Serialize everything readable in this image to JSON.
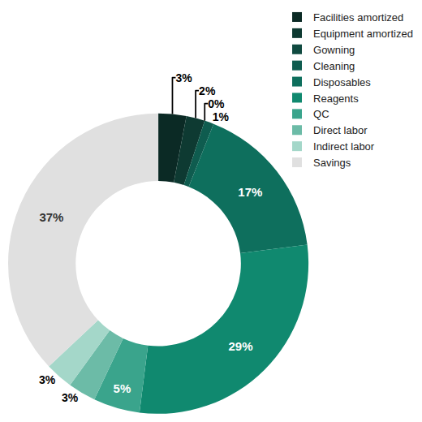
{
  "chart_data": {
    "type": "pie",
    "categories": [
      "Facilities amortized",
      "Equipment amortized",
      "Gowning",
      "Cleaning",
      "Disposables",
      "Reagents",
      "QC",
      "Direct labor",
      "Indirect labor",
      "Savings"
    ],
    "values": [
      3,
      2,
      0,
      1,
      17,
      29,
      5,
      3,
      3,
      37
    ],
    "value_labels": [
      "3%",
      "2%",
      "0%",
      "1%",
      "17%",
      "29%",
      "5%",
      "3%",
      "3%",
      "37%"
    ],
    "colors": [
      "#0b2a25",
      "#0e3a32",
      "#104a40",
      "#0f5c4f",
      "#0e6f5d",
      "#10896f",
      "#3aa48c",
      "#6cbba7",
      "#a4d7c9",
      "#e0e0e0"
    ],
    "legend": "upper right",
    "data_labels": true
  }
}
